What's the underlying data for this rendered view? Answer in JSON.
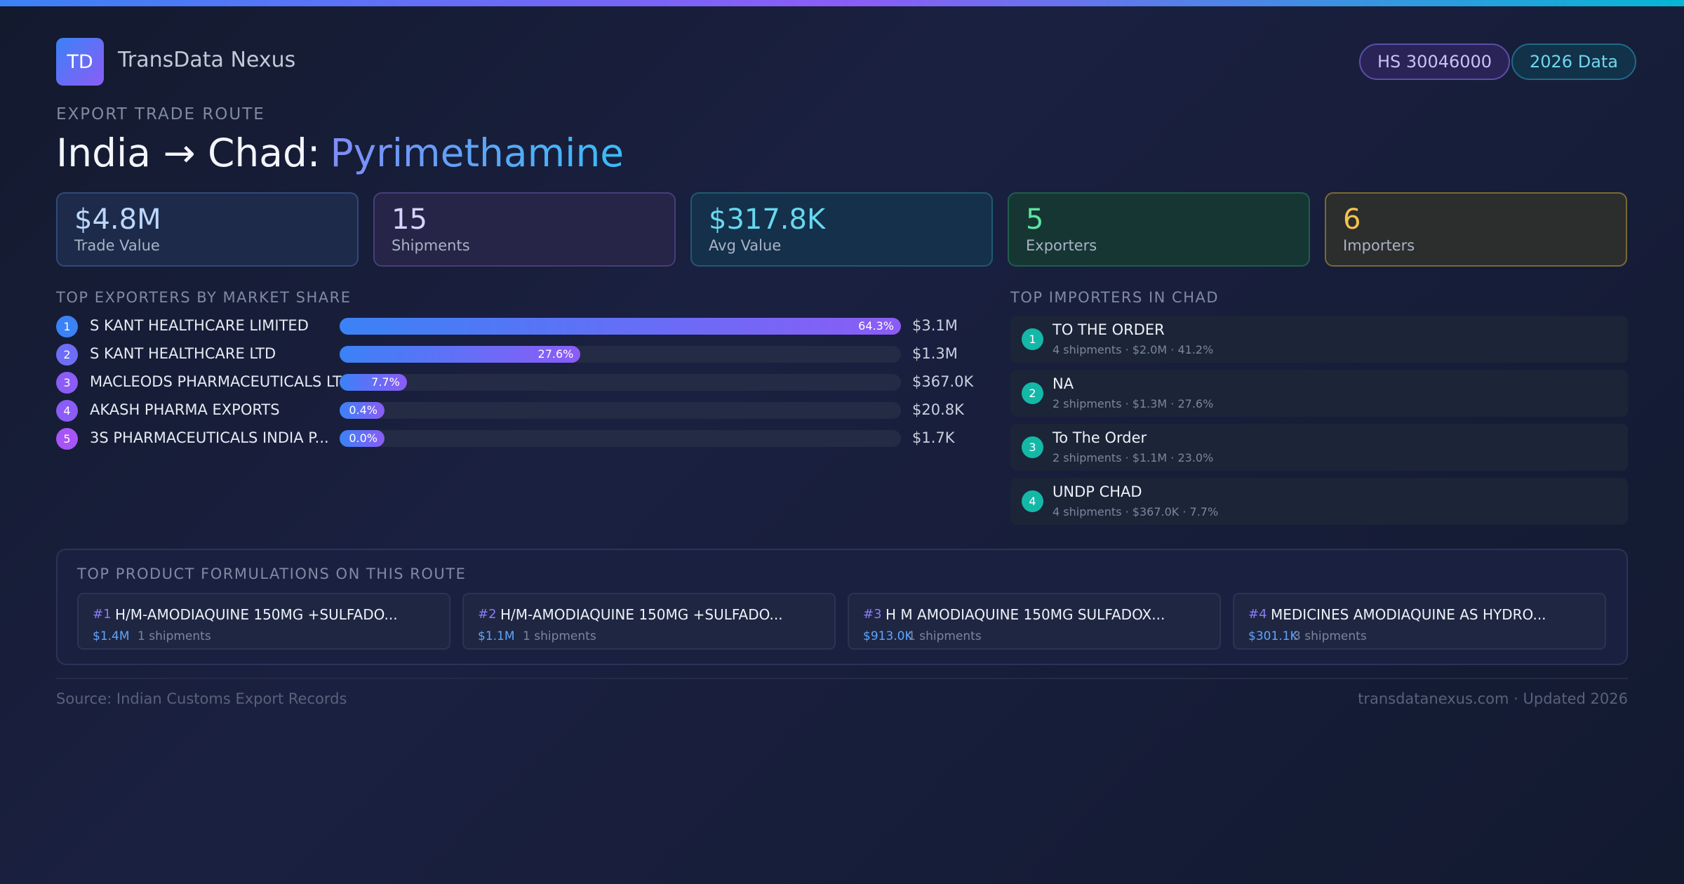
{
  "header": {
    "logo": "TD",
    "brand": "TransData Nexus",
    "badges": [
      "HS 30046000",
      "2026 Data"
    ],
    "eyebrow": "EXPORT TRADE ROUTE",
    "title_prefix": "India → Chad:",
    "title_highlight": "Pyrimethamine"
  },
  "stats": [
    {
      "value": "$4.8M",
      "label": "Trade Value"
    },
    {
      "value": "15",
      "label": "Shipments"
    },
    {
      "value": "$317.8K",
      "label": "Avg Value"
    },
    {
      "value": "5",
      "label": "Exporters"
    },
    {
      "value": "6",
      "label": "Importers"
    }
  ],
  "exporters": {
    "title": "TOP EXPORTERS BY MARKET SHARE",
    "rows": [
      {
        "rank": "1",
        "name": "S KANT HEALTHCARE LIMITED",
        "share": 64.3,
        "share_label": "64.3%",
        "value": "$3.1M"
      },
      {
        "rank": "2",
        "name": "S KANT HEALTHCARE LTD",
        "share": 27.6,
        "share_label": "27.6%",
        "value": "$1.3M"
      },
      {
        "rank": "3",
        "name": "MACLEODS PHARMACEUTICALS LTD",
        "share": 7.7,
        "share_label": "7.7%",
        "value": "$367.0K"
      },
      {
        "rank": "4",
        "name": "AKASH PHARMA EXPORTS",
        "share": 0.4,
        "share_label": "0.4%",
        "value": "$20.8K"
      },
      {
        "rank": "5",
        "name": "3S PHARMACEUTICALS INDIA P...",
        "share": 0.0,
        "share_label": "0.0%",
        "value": "$1.7K"
      }
    ]
  },
  "importers": {
    "title": "TOP IMPORTERS IN CHAD",
    "rows": [
      {
        "rank": "1",
        "name": "TO THE ORDER",
        "detail": "4 shipments · $2.0M · 41.2%"
      },
      {
        "rank": "2",
        "name": "NA",
        "detail": "2 shipments · $1.3M · 27.6%"
      },
      {
        "rank": "3",
        "name": "To The Order",
        "detail": "2 shipments · $1.1M · 23.0%"
      },
      {
        "rank": "4",
        "name": "UNDP CHAD",
        "detail": "4 shipments · $367.0K · 7.7%"
      }
    ]
  },
  "products": {
    "title": "TOP PRODUCT FORMULATIONS ON THIS ROUTE",
    "items": [
      {
        "rank": "#1",
        "name": "H/M-AMODIAQUINE 150MG +SULFADO...",
        "value": "$1.4M",
        "shipments": "1 shipments"
      },
      {
        "rank": "#2",
        "name": "H/M-AMODIAQUINE 150MG +SULFADO...",
        "value": "$1.1M",
        "shipments": "1 shipments"
      },
      {
        "rank": "#3",
        "name": "H M AMODIAQUINE 150MG SULFADOX...",
        "value": "$913.0K",
        "shipments": "1 shipments"
      },
      {
        "rank": "#4",
        "name": "MEDICINES AMODIAQUINE AS HYDRO...",
        "value": "$301.1K",
        "shipments": "3 shipments"
      }
    ]
  },
  "footer": {
    "source": "Source: Indian Customs Export Records",
    "site": "transdatanexus.com · Updated 2026"
  }
}
